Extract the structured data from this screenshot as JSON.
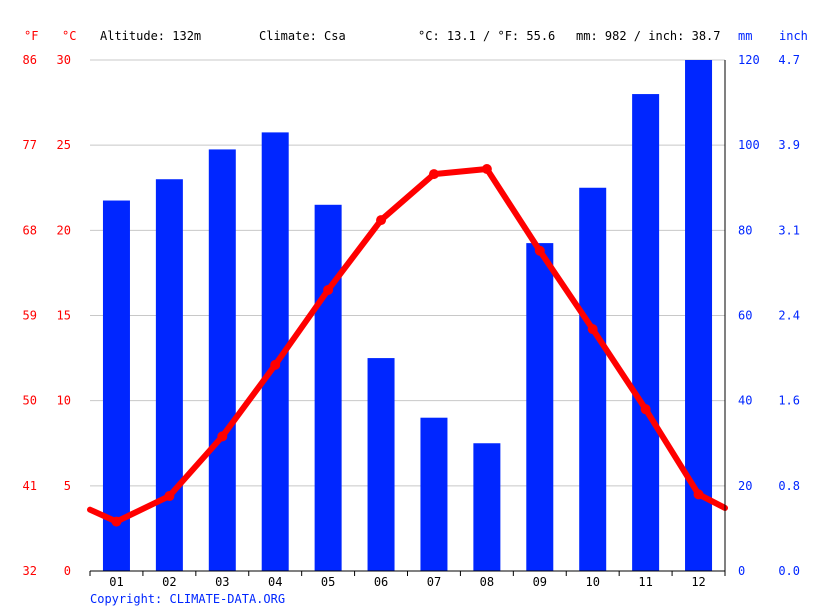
{
  "header": {
    "unit_f": "°F",
    "unit_c": "°C",
    "altitude": "Altitude: 132m",
    "climate": "Climate: Csa",
    "temp_avg": "°C: 13.1 / °F: 55.6",
    "precip_total": "mm: 982 / inch: 38.7",
    "unit_mm": "mm",
    "unit_inch": "inch"
  },
  "footer": {
    "copyright": "Copyright: CLIMATE-DATA.ORG"
  },
  "colors": {
    "temperature": "#ff0000",
    "precipitation": "#0026ff",
    "grid": "#c8c8c8",
    "axis": "#000000"
  },
  "chart_data": {
    "type": "bar+line",
    "categories": [
      "01",
      "02",
      "03",
      "04",
      "05",
      "06",
      "07",
      "08",
      "09",
      "10",
      "11",
      "12"
    ],
    "series": [
      {
        "type": "bar",
        "axis": "right",
        "values": [
          87,
          92,
          99,
          103,
          86,
          50,
          36,
          30,
          77,
          90,
          112,
          120
        ]
      },
      {
        "type": "line",
        "axis": "left",
        "values": [
          2.9,
          4.4,
          7.9,
          12.1,
          16.5,
          20.6,
          23.3,
          23.6,
          18.8,
          14.2,
          9.5,
          4.5
        ],
        "edge_values": [
          3.6,
          3.7
        ]
      }
    ],
    "y_left_celsius": {
      "ticks": [
        "0",
        "5",
        "10",
        "15",
        "20",
        "25",
        "30"
      ],
      "ylim": [
        0,
        30
      ]
    },
    "y_left_fahrenheit": {
      "ticks": [
        "32",
        "41",
        "50",
        "59",
        "68",
        "77",
        "86"
      ]
    },
    "y_right_mm": {
      "ticks": [
        "0",
        "20",
        "40",
        "60",
        "80",
        "100",
        "120"
      ],
      "ylim": [
        0,
        120
      ]
    },
    "y_right_inch": {
      "ticks": [
        "0.0",
        "0.8",
        "1.6",
        "2.4",
        "3.1",
        "3.9",
        "4.7"
      ]
    },
    "grid": true
  }
}
